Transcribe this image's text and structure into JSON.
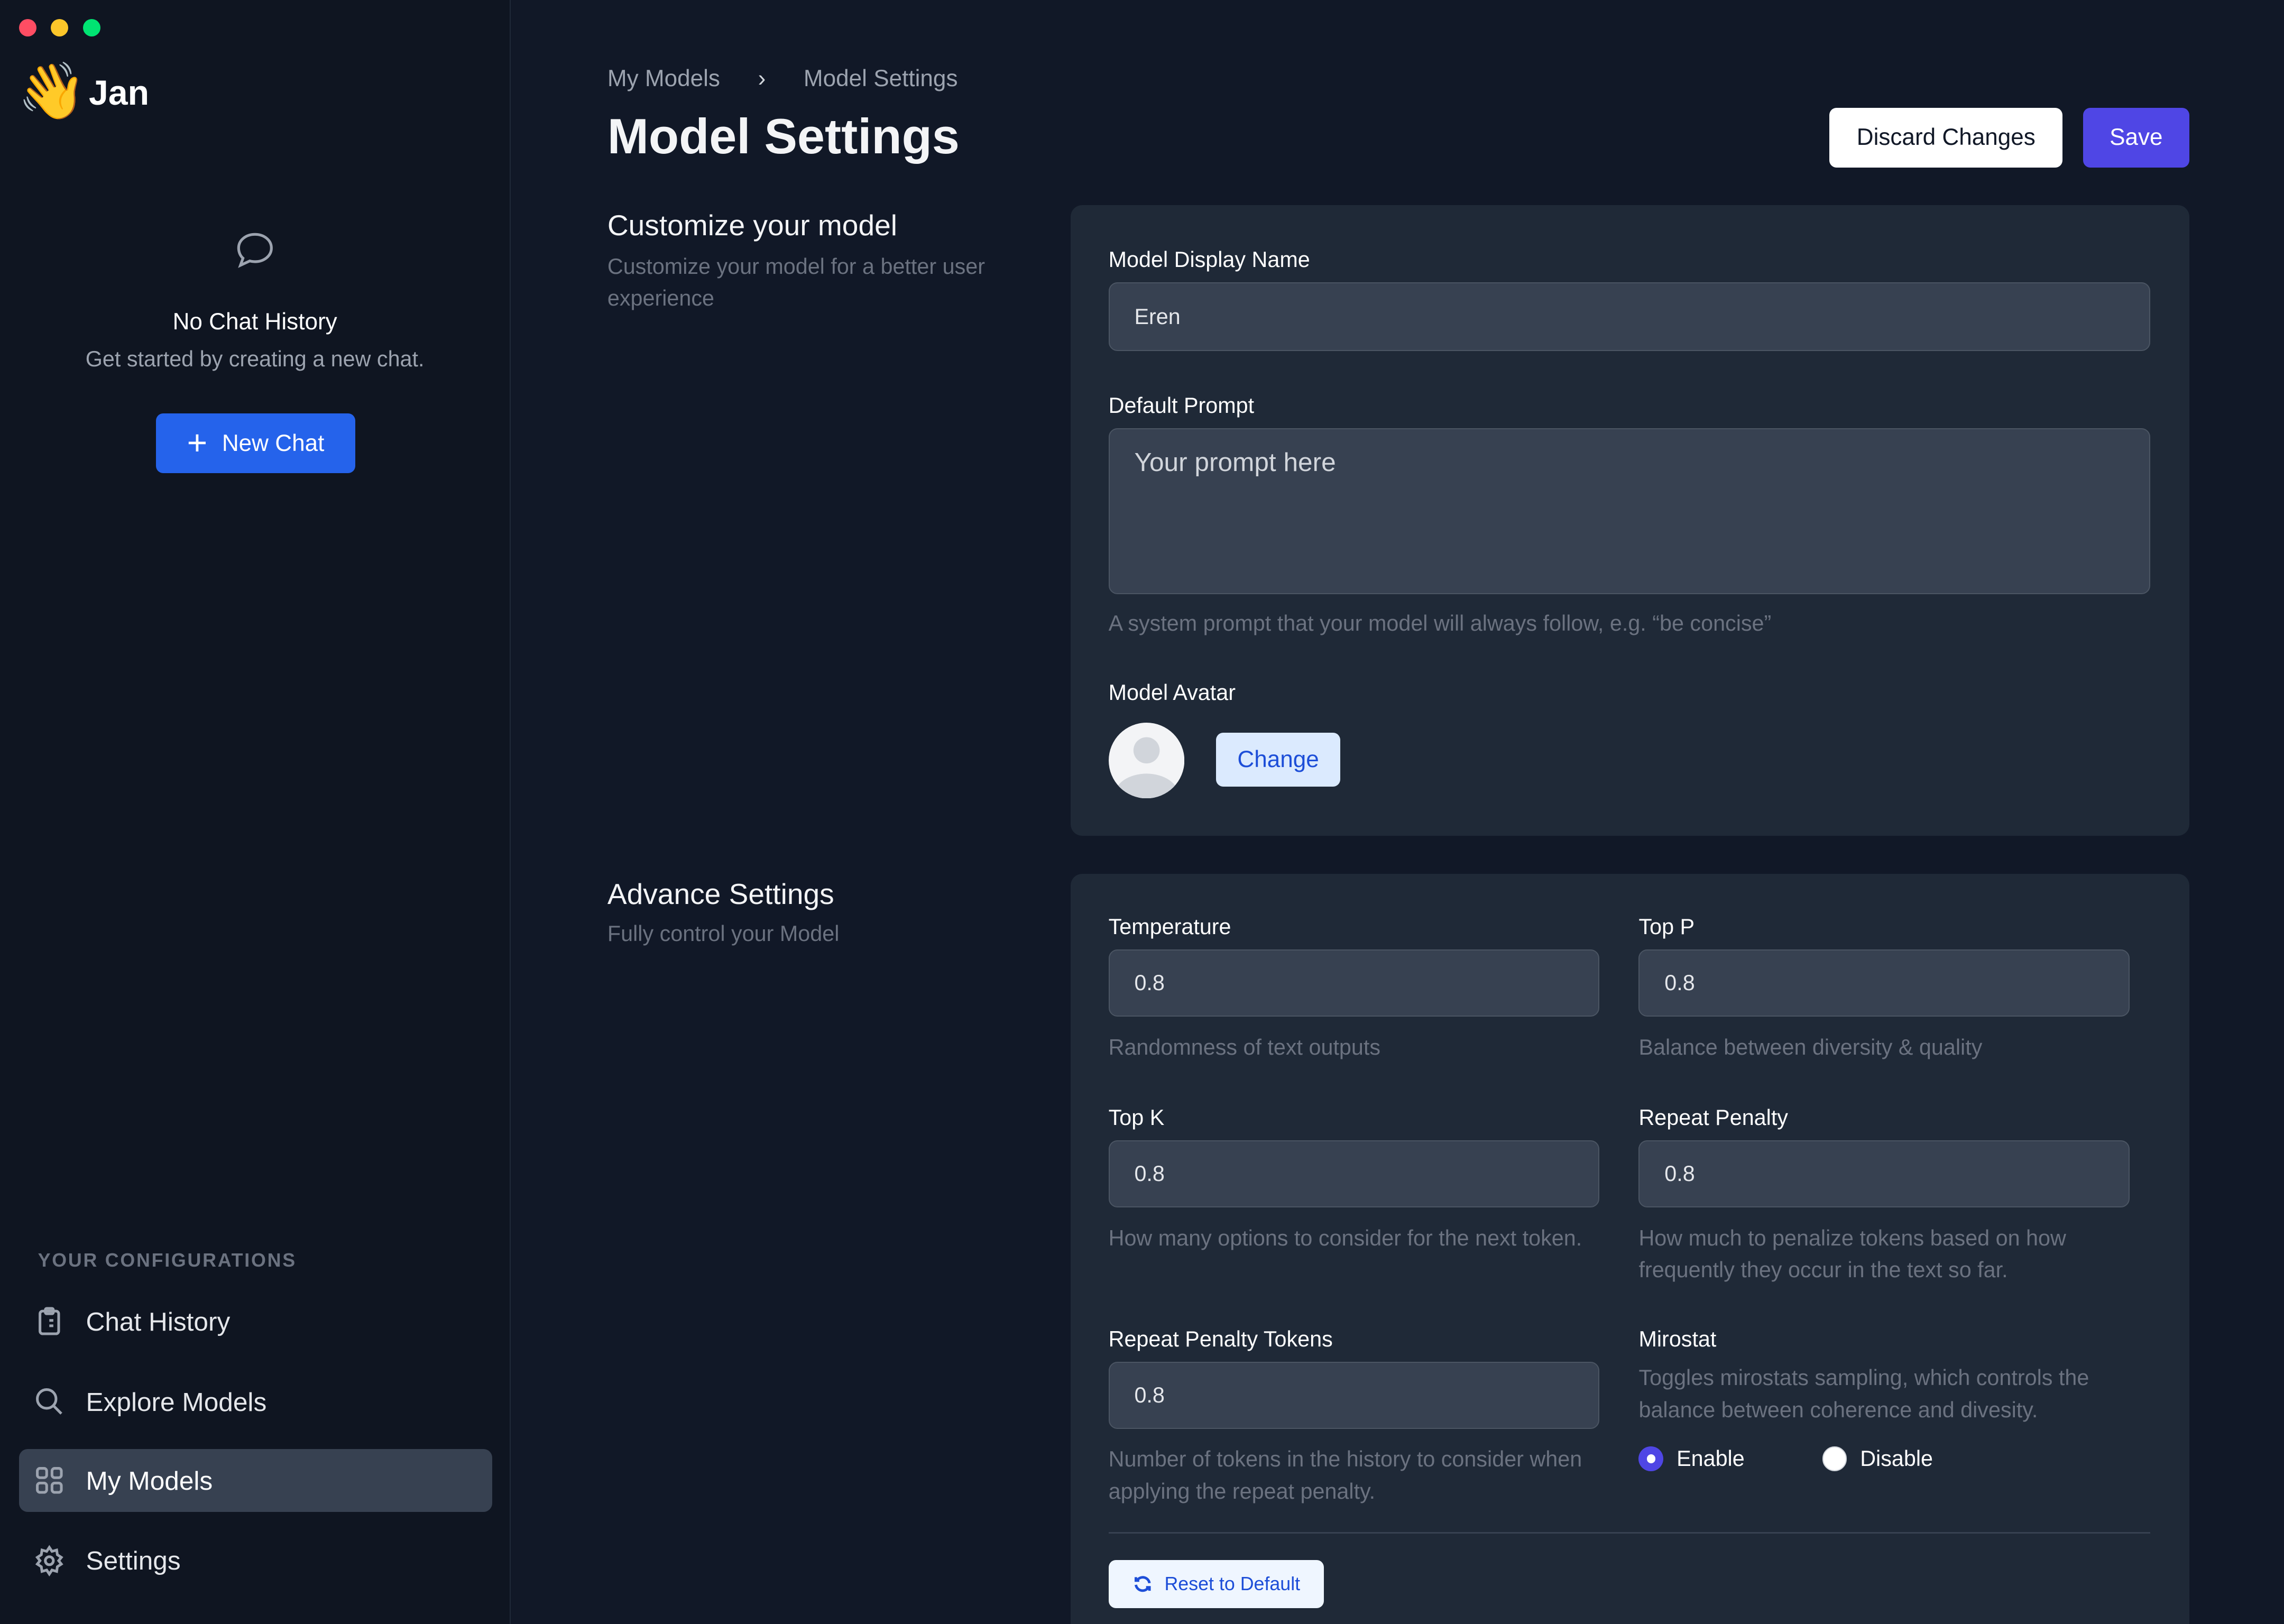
{
  "window": {
    "controls": {
      "close": "#ff4d63",
      "minimize": "#fcc62a",
      "maximize": "#00e472"
    }
  },
  "sidebar": {
    "app_name": "Jan",
    "logo_icon": "waving-hand-icon",
    "empty_state": {
      "icon": "chat-bubble-icon",
      "title": "No Chat History",
      "subtitle": "Get started by creating a new chat."
    },
    "new_chat_label": "New Chat",
    "section_title": "YOUR CONFIGURATIONS",
    "items": [
      {
        "label": "Chat History",
        "icon": "clipboard-icon"
      },
      {
        "label": "Explore Models",
        "icon": "search-icon"
      },
      {
        "label": "My Models",
        "icon": "grid-icon",
        "active": true
      },
      {
        "label": "Settings",
        "icon": "gear-icon"
      }
    ]
  },
  "header": {
    "breadcrumb": [
      "My Models",
      "Model Settings"
    ],
    "title": "Model Settings",
    "discard_label": "Discard Changes",
    "save_label": "Save"
  },
  "customize": {
    "title": "Customize your model",
    "subtitle": "Customize your model for a better user experience",
    "display_name_label": "Model Display Name",
    "display_name_value": "Eren",
    "prompt_label": "Default Prompt",
    "prompt_placeholder": "Your prompt here",
    "prompt_help": "A system prompt that your model will always follow, e.g. “be concise”",
    "avatar_label": "Model Avatar",
    "change_label": "Change"
  },
  "advanced": {
    "title": "Advance Settings",
    "subtitle": "Fully control your Model",
    "temperature": {
      "label": "Temperature",
      "value": "0.8",
      "help": "Randomness of text outputs"
    },
    "top_p": {
      "label": "Top P",
      "value": "0.8",
      "help": "Balance between diversity & quality"
    },
    "top_k": {
      "label": "Top K",
      "value": "0.8",
      "help": "How many options to consider for the next token."
    },
    "repeat_penalty": {
      "label": "Repeat Penalty",
      "value": "0.8",
      "help": "How much to penalize tokens based on how frequently they occur in the text so far."
    },
    "repeat_penalty_tokens": {
      "label": "Repeat Penalty Tokens",
      "value": "0.8",
      "help": "Number of tokens in the history to consider when applying the repeat penalty."
    },
    "mirostat": {
      "label": "Mirostat",
      "help": "Toggles mirostats sampling, which controls the balance between coherence and divesity.",
      "enable_label": "Enable",
      "disable_label": "Disable",
      "selected": "Enable"
    },
    "reset_label": "Reset to Default"
  },
  "colors": {
    "accent": "#4f46e5",
    "primary_blue": "#2563eb",
    "background": "#111827",
    "card": "#1f2937",
    "input": "#374151"
  }
}
